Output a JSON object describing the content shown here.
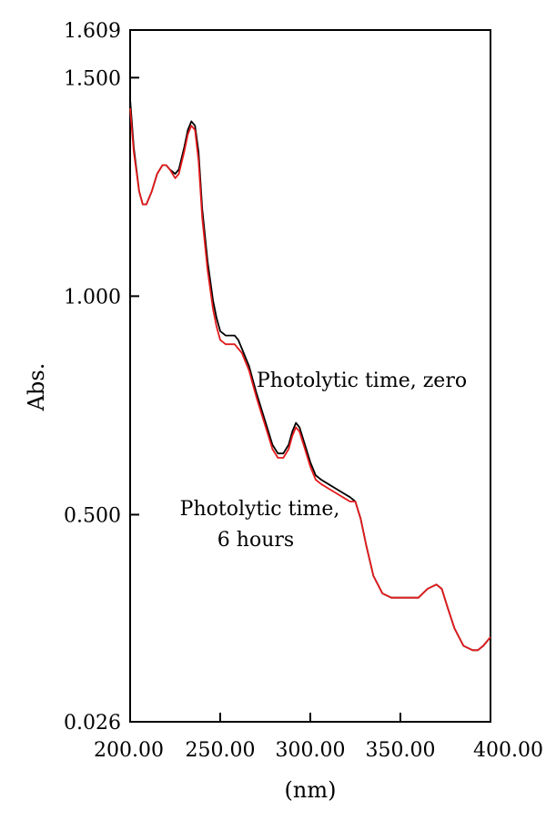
{
  "chart_data": {
    "type": "line",
    "xlabel": "(nm)",
    "ylabel": "Abs.",
    "xlim": [
      200,
      400
    ],
    "ylim": [
      0.026,
      1.609
    ],
    "x_ticks": [
      {
        "value": 200,
        "label": "200.00"
      },
      {
        "value": 250,
        "label": "250.00"
      },
      {
        "value": 300,
        "label": "300.00"
      },
      {
        "value": 350,
        "label": "350.00"
      },
      {
        "value": 400,
        "label": "400.00"
      }
    ],
    "y_ticks": [
      {
        "value": 0.026,
        "label": "0.026"
      },
      {
        "value": 0.5,
        "label": "0.500"
      },
      {
        "value": 1.0,
        "label": "1.000"
      },
      {
        "value": 1.5,
        "label": "1.500"
      },
      {
        "value": 1.609,
        "label": "1.609"
      }
    ],
    "grid": false,
    "series": [
      {
        "color": "#000000",
        "x": [
          200,
          202,
          205,
          207,
          209,
          212,
          215,
          218,
          220,
          222,
          225,
          227,
          230,
          232,
          234,
          236,
          238,
          240,
          243,
          246,
          248,
          250,
          253,
          256,
          258,
          260,
          262,
          264,
          266,
          268,
          270,
          273,
          276,
          279,
          282,
          285,
          288,
          290,
          292,
          294,
          297,
          300,
          303,
          306,
          310,
          314,
          318,
          322,
          325,
          328,
          331,
          335,
          340,
          345,
          350,
          355,
          360,
          365,
          370,
          373,
          376,
          380,
          385,
          390,
          393,
          396,
          400
        ],
        "y": [
          1.45,
          1.34,
          1.24,
          1.21,
          1.21,
          1.24,
          1.28,
          1.3,
          1.3,
          1.29,
          1.28,
          1.29,
          1.34,
          1.38,
          1.4,
          1.39,
          1.33,
          1.2,
          1.08,
          0.99,
          0.95,
          0.92,
          0.91,
          0.91,
          0.91,
          0.9,
          0.88,
          0.86,
          0.84,
          0.81,
          0.78,
          0.74,
          0.7,
          0.66,
          0.64,
          0.64,
          0.66,
          0.69,
          0.71,
          0.7,
          0.66,
          0.62,
          0.59,
          0.58,
          0.57,
          0.56,
          0.55,
          0.54,
          0.53,
          0.49,
          0.43,
          0.36,
          0.32,
          0.31,
          0.31,
          0.31,
          0.31,
          0.33,
          0.34,
          0.33,
          0.29,
          0.24,
          0.2,
          0.19,
          0.19,
          0.2,
          0.22
        ]
      },
      {
        "color": "#e31a1c",
        "x": [
          200,
          202,
          205,
          207,
          209,
          212,
          215,
          218,
          220,
          222,
          225,
          227,
          230,
          232,
          234,
          236,
          238,
          240,
          243,
          246,
          248,
          250,
          253,
          256,
          258,
          260,
          262,
          264,
          266,
          268,
          270,
          273,
          276,
          279,
          282,
          285,
          288,
          290,
          292,
          294,
          297,
          300,
          303,
          306,
          310,
          314,
          318,
          322,
          325,
          328,
          331,
          335,
          340,
          345,
          350,
          355,
          360,
          365,
          370,
          373,
          376,
          380,
          385,
          390,
          393,
          396,
          400
        ],
        "y": [
          1.43,
          1.33,
          1.24,
          1.21,
          1.21,
          1.24,
          1.28,
          1.3,
          1.3,
          1.29,
          1.27,
          1.28,
          1.33,
          1.37,
          1.39,
          1.38,
          1.31,
          1.18,
          1.06,
          0.97,
          0.93,
          0.9,
          0.89,
          0.89,
          0.89,
          0.88,
          0.87,
          0.85,
          0.83,
          0.8,
          0.77,
          0.73,
          0.69,
          0.65,
          0.63,
          0.63,
          0.65,
          0.68,
          0.7,
          0.69,
          0.65,
          0.61,
          0.58,
          0.57,
          0.56,
          0.55,
          0.54,
          0.53,
          0.53,
          0.49,
          0.43,
          0.36,
          0.32,
          0.31,
          0.31,
          0.31,
          0.31,
          0.33,
          0.34,
          0.33,
          0.29,
          0.24,
          0.2,
          0.19,
          0.19,
          0.2,
          0.22
        ]
      }
    ],
    "annotations": [
      {
        "lines": [
          "Photolytic time, zero"
        ]
      },
      {
        "lines": [
          "Photolytic time,",
          "6 hours"
        ]
      }
    ]
  }
}
